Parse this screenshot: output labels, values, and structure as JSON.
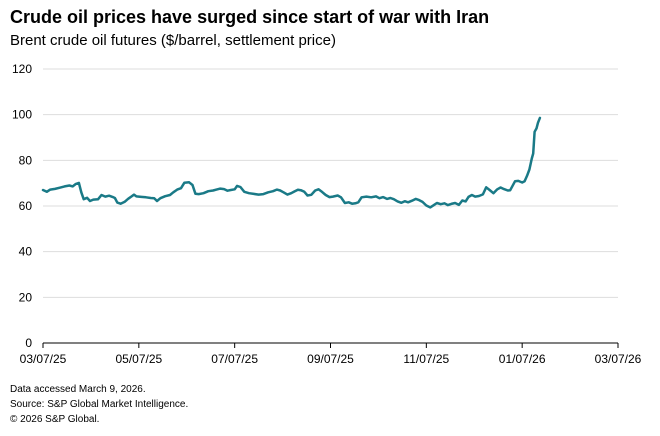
{
  "title": "Crude oil prices have surged since start of war with Iran",
  "subtitle": "Brent crude oil futures ($/barrel, settlement price)",
  "footer": {
    "accessed": "Data accessed March 9, 2026.",
    "source": "Source: S&P Global Market Intelligence.",
    "copyright": "© 2026 S&P Global."
  },
  "colors": {
    "line": "#1a7a87",
    "grid": "#dddddd",
    "axis": "#000000"
  },
  "chart_data": {
    "type": "line",
    "title": "Crude oil prices have surged since start of war with Iran",
    "subtitle": "Brent crude oil futures ($/barrel, settlement price)",
    "xlabel": "",
    "ylabel": "",
    "ylim": [
      0,
      120
    ],
    "yticks": [
      0,
      20,
      40,
      60,
      80,
      100,
      120
    ],
    "xrange_months": [
      0,
      12
    ],
    "xticks": [
      {
        "m": 0,
        "label": "03/07/25"
      },
      {
        "m": 2,
        "label": "05/07/25"
      },
      {
        "m": 4,
        "label": "07/07/25"
      },
      {
        "m": 6,
        "label": "09/07/25"
      },
      {
        "m": 8,
        "label": "11/07/25"
      },
      {
        "m": 10,
        "label": "01/07/26"
      },
      {
        "m": 12,
        "label": "03/07/26"
      }
    ],
    "grid": true,
    "series": [
      {
        "name": "Brent crude oil futures",
        "points": [
          [
            0.0,
            67.0
          ],
          [
            0.08,
            66.2
          ],
          [
            0.15,
            67.2
          ],
          [
            0.25,
            67.5
          ],
          [
            0.35,
            68.0
          ],
          [
            0.45,
            68.6
          ],
          [
            0.55,
            69.0
          ],
          [
            0.62,
            68.6
          ],
          [
            0.68,
            69.6
          ],
          [
            0.75,
            70.1
          ],
          [
            0.8,
            66.0
          ],
          [
            0.85,
            63.0
          ],
          [
            0.92,
            63.6
          ],
          [
            0.98,
            62.2
          ],
          [
            1.05,
            62.8
          ],
          [
            1.15,
            63.0
          ],
          [
            1.22,
            64.8
          ],
          [
            1.3,
            64.1
          ],
          [
            1.38,
            64.5
          ],
          [
            1.45,
            64.0
          ],
          [
            1.5,
            63.5
          ],
          [
            1.55,
            61.5
          ],
          [
            1.62,
            61.0
          ],
          [
            1.7,
            61.8
          ],
          [
            1.78,
            63.2
          ],
          [
            1.85,
            64.2
          ],
          [
            1.9,
            65.0
          ],
          [
            1.95,
            64.2
          ],
          [
            2.05,
            64.0
          ],
          [
            2.15,
            63.8
          ],
          [
            2.25,
            63.5
          ],
          [
            2.32,
            63.4
          ],
          [
            2.38,
            62.2
          ],
          [
            2.45,
            63.4
          ],
          [
            2.55,
            64.3
          ],
          [
            2.65,
            64.8
          ],
          [
            2.72,
            66.0
          ],
          [
            2.8,
            67.2
          ],
          [
            2.88,
            67.8
          ],
          [
            2.95,
            70.2
          ],
          [
            3.05,
            70.4
          ],
          [
            3.12,
            69.2
          ],
          [
            3.18,
            65.4
          ],
          [
            3.25,
            65.2
          ],
          [
            3.35,
            65.6
          ],
          [
            3.45,
            66.5
          ],
          [
            3.55,
            66.8
          ],
          [
            3.62,
            67.2
          ],
          [
            3.7,
            67.6
          ],
          [
            3.78,
            67.4
          ],
          [
            3.85,
            66.7
          ],
          [
            3.92,
            67.0
          ],
          [
            4.0,
            67.3
          ],
          [
            4.05,
            68.8
          ],
          [
            4.12,
            68.3
          ],
          [
            4.2,
            66.2
          ],
          [
            4.3,
            65.6
          ],
          [
            4.4,
            65.3
          ],
          [
            4.5,
            65.0
          ],
          [
            4.6,
            65.2
          ],
          [
            4.7,
            66.0
          ],
          [
            4.8,
            66.5
          ],
          [
            4.88,
            67.2
          ],
          [
            4.95,
            66.8
          ],
          [
            5.02,
            66.0
          ],
          [
            5.1,
            65.0
          ],
          [
            5.18,
            65.6
          ],
          [
            5.25,
            66.4
          ],
          [
            5.32,
            67.1
          ],
          [
            5.38,
            66.9
          ],
          [
            5.45,
            66.3
          ],
          [
            5.52,
            64.6
          ],
          [
            5.6,
            64.9
          ],
          [
            5.68,
            66.8
          ],
          [
            5.75,
            67.3
          ],
          [
            5.82,
            66.2
          ],
          [
            5.9,
            64.8
          ],
          [
            5.98,
            63.9
          ],
          [
            6.05,
            64.1
          ],
          [
            6.15,
            64.6
          ],
          [
            6.22,
            63.8
          ],
          [
            6.3,
            61.3
          ],
          [
            6.38,
            61.6
          ],
          [
            6.45,
            61.0
          ],
          [
            6.52,
            61.2
          ],
          [
            6.58,
            61.6
          ],
          [
            6.65,
            63.8
          ],
          [
            6.75,
            64.1
          ],
          [
            6.85,
            63.8
          ],
          [
            6.95,
            64.2
          ],
          [
            7.02,
            63.4
          ],
          [
            7.1,
            63.9
          ],
          [
            7.18,
            63.1
          ],
          [
            7.25,
            63.5
          ],
          [
            7.32,
            63.0
          ],
          [
            7.4,
            62.0
          ],
          [
            7.48,
            61.4
          ],
          [
            7.55,
            62.1
          ],
          [
            7.62,
            61.6
          ],
          [
            7.7,
            62.3
          ],
          [
            7.78,
            63.1
          ],
          [
            7.85,
            62.6
          ],
          [
            7.92,
            61.8
          ],
          [
            8.0,
            60.2
          ],
          [
            8.08,
            59.4
          ],
          [
            8.15,
            60.3
          ],
          [
            8.22,
            61.3
          ],
          [
            8.3,
            60.8
          ],
          [
            8.38,
            61.2
          ],
          [
            8.45,
            60.4
          ],
          [
            8.52,
            60.9
          ],
          [
            8.6,
            61.3
          ],
          [
            8.68,
            60.5
          ],
          [
            8.75,
            62.4
          ],
          [
            8.82,
            62.0
          ],
          [
            8.88,
            64.0
          ],
          [
            8.95,
            64.8
          ],
          [
            9.02,
            64.1
          ],
          [
            9.1,
            64.4
          ],
          [
            9.18,
            65.1
          ],
          [
            9.25,
            68.2
          ],
          [
            9.32,
            67.0
          ],
          [
            9.4,
            65.6
          ],
          [
            9.48,
            67.3
          ],
          [
            9.55,
            68.1
          ],
          [
            9.62,
            67.4
          ],
          [
            9.7,
            66.8
          ],
          [
            9.75,
            66.9
          ],
          [
            9.85,
            70.8
          ],
          [
            9.92,
            71.0
          ],
          [
            10.0,
            70.3
          ],
          [
            10.05,
            70.8
          ],
          [
            10.1,
            73.2
          ],
          [
            10.15,
            76.0
          ],
          [
            10.2,
            80.8
          ],
          [
            10.23,
            83.0
          ],
          [
            10.26,
            92.5
          ],
          [
            10.3,
            94.0
          ],
          [
            10.33,
            96.5
          ],
          [
            10.37,
            98.6
          ]
        ]
      }
    ]
  }
}
